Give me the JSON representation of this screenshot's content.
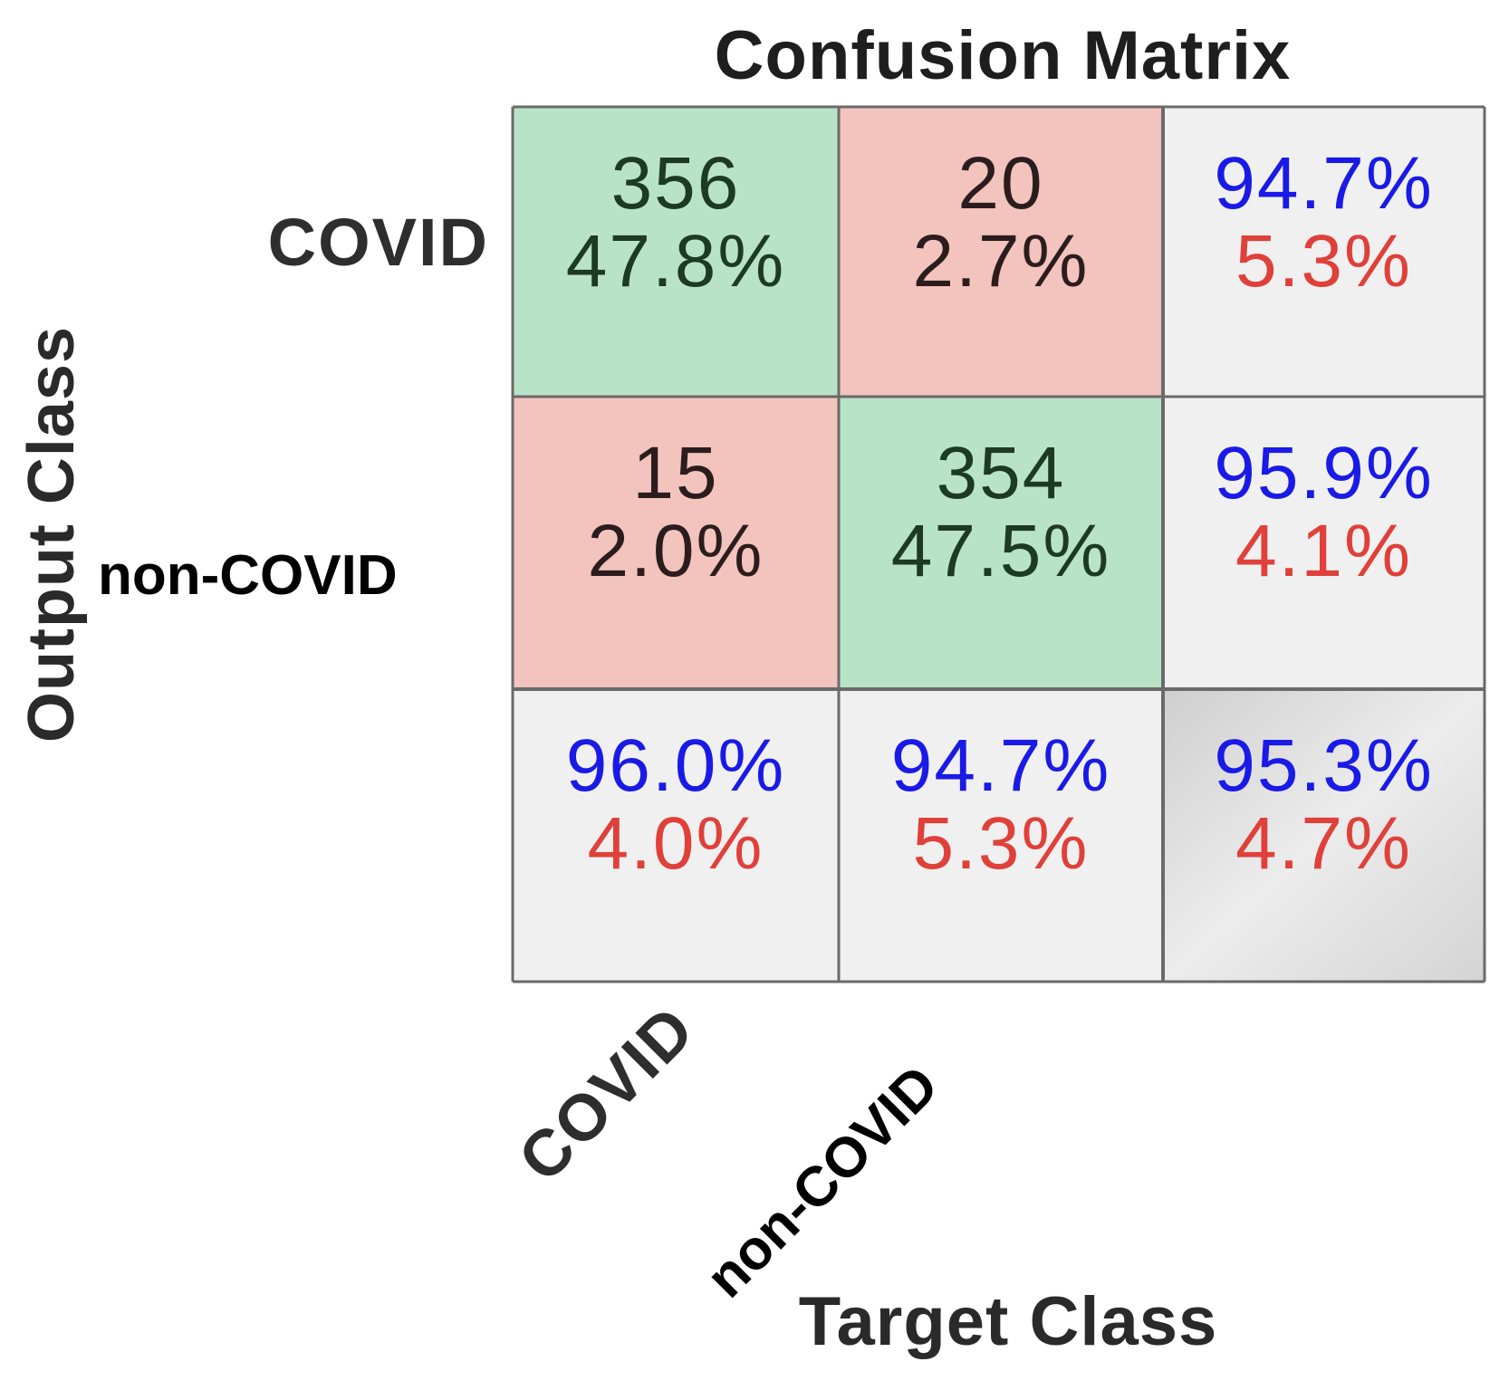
{
  "chart_data": {
    "type": "heatmap",
    "title": "Confusion Matrix",
    "xlabel": "Target Class",
    "ylabel": "Output Class",
    "row_labels": [
      "COVID",
      "non-COVID"
    ],
    "col_labels": [
      "COVID",
      "non-COVID"
    ],
    "cells": [
      {
        "row": 0,
        "col": 0,
        "kind": "correct",
        "count": "356",
        "percent": "47.8%"
      },
      {
        "row": 0,
        "col": 1,
        "kind": "error",
        "count": "20",
        "percent": "2.7%"
      },
      {
        "row": 1,
        "col": 0,
        "kind": "error",
        "count": "15",
        "percent": "2.0%"
      },
      {
        "row": 1,
        "col": 1,
        "kind": "correct",
        "count": "354",
        "percent": "47.5%"
      }
    ],
    "row_summary": [
      {
        "correct": "94.7%",
        "incorrect": "5.3%"
      },
      {
        "correct": "95.9%",
        "incorrect": "4.1%"
      }
    ],
    "col_summary": [
      {
        "correct": "96.0%",
        "incorrect": "4.0%"
      },
      {
        "correct": "94.7%",
        "incorrect": "5.3%"
      }
    ],
    "overall": {
      "correct": "95.3%",
      "incorrect": "4.7%"
    },
    "colors": {
      "correct_cell": "#b9e3c6",
      "error_cell": "#f3c3bd",
      "summary_cell": "#f0f0f0",
      "overall_cell": "#d9d9d9",
      "correct_count_text": "#1d3a22",
      "error_count_text": "#2b1d1d",
      "summary_correct_text": "#1a1ae6",
      "summary_incorrect_text": "#e0403a",
      "grid_line": "#6a6a6a"
    }
  }
}
